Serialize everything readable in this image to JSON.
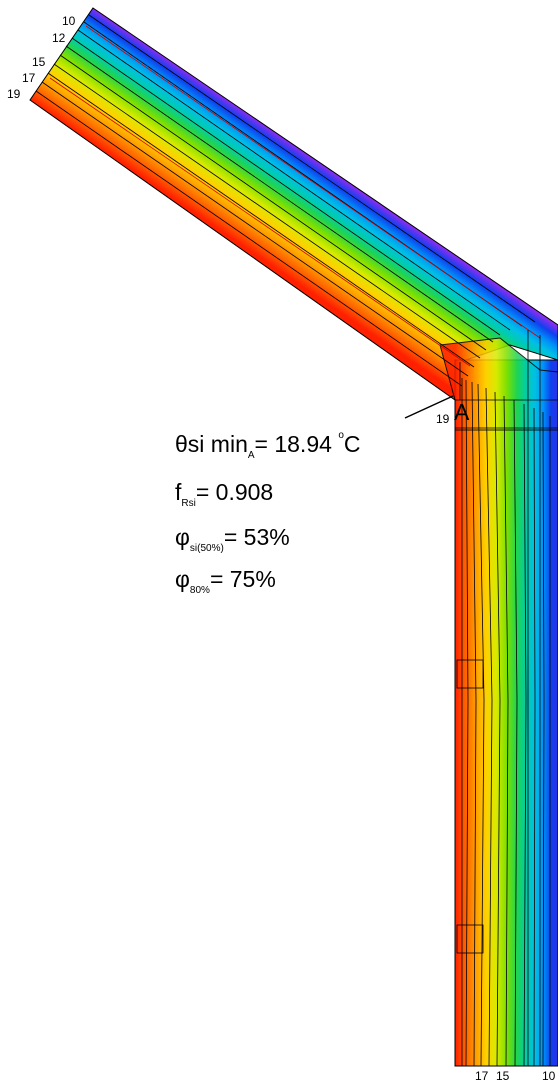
{
  "contour_labels": {
    "roof": [
      "10",
      "12",
      "15",
      "17",
      "19"
    ],
    "bottom": [
      "17",
      "15",
      "10"
    ],
    "point_a_value": "19"
  },
  "point_label": "A",
  "results": {
    "theta": {
      "symbol": "θ",
      "main": "si min",
      "sub": "A",
      "eq": "= 18.94 ",
      "deg": "o",
      "unit": "C"
    },
    "frsi": {
      "main": "f",
      "sub": "Rsi",
      "eq": "= 0.908"
    },
    "phi_si": {
      "main": "φ",
      "sub": "si(50%)",
      "eq": "= 53%"
    },
    "phi_80": {
      "main": "φ",
      "sub": "80%",
      "eq": "= 75%"
    }
  },
  "palette": [
    "#ff2000",
    "#ff5a00",
    "#ff9000",
    "#ffc400",
    "#f0e800",
    "#b8ea00",
    "#6ee000",
    "#1ed34a",
    "#00cc9a",
    "#00c8d8",
    "#00a6f0",
    "#0070ff",
    "#1a3ff0",
    "#5a2cf0",
    "#8c2ef0"
  ]
}
